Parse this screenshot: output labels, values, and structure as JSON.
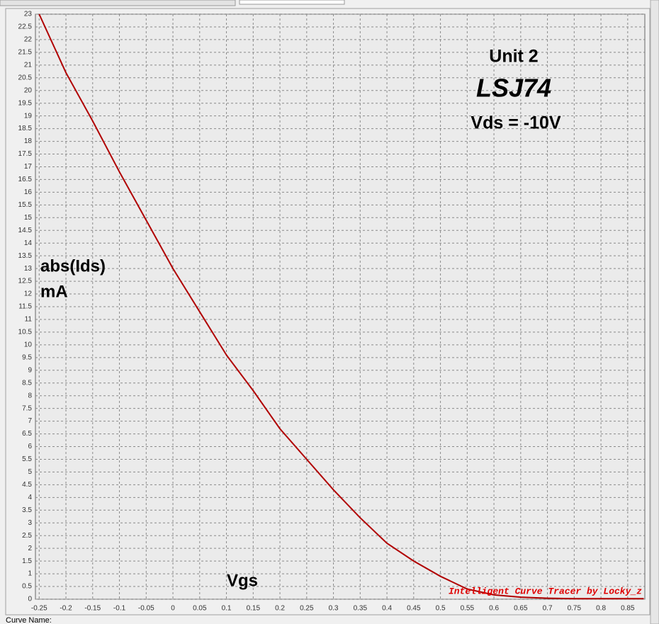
{
  "chart_data": {
    "type": "line",
    "annotations": [
      "Unit 2",
      "LSJ74",
      "Vds = -10V"
    ],
    "ylabel": [
      "abs(Ids)",
      "mA"
    ],
    "xlabel": "Vgs",
    "watermark": "Intelligent Curve Tracer by Locky_z",
    "color": "#b00000",
    "x": [
      -0.25,
      -0.2,
      -0.15,
      -0.1,
      -0.05,
      0,
      0.05,
      0.1,
      0.15,
      0.2,
      0.25,
      0.3,
      0.35,
      0.4,
      0.45,
      0.5,
      0.55,
      0.6,
      0.65,
      0.7,
      0.75,
      0.8,
      0.85,
      0.88
    ],
    "values": [
      23,
      20.7,
      18.8,
      16.8,
      14.9,
      13,
      11.3,
      9.6,
      8.2,
      6.7,
      5.5,
      4.3,
      3.2,
      2.2,
      1.5,
      0.9,
      0.4,
      0.17,
      0.08,
      0.04,
      0.02,
      0.02,
      0.02,
      0.02
    ],
    "xlim": [
      -0.257,
      0.882
    ],
    "ylim": [
      0,
      23
    ],
    "xticks": [
      -0.25,
      -0.2,
      -0.15,
      -0.1,
      -0.05,
      0,
      0.05,
      0.1,
      0.15,
      0.2,
      0.25,
      0.3,
      0.35,
      0.4,
      0.45,
      0.5,
      0.55,
      0.6,
      0.65,
      0.7,
      0.75,
      0.8,
      0.85
    ],
    "yticks": [
      0,
      0.5,
      1,
      1.5,
      2,
      2.5,
      3,
      3.5,
      4,
      4.5,
      5,
      5.5,
      6,
      6.5,
      7,
      7.5,
      8,
      8.5,
      9,
      9.5,
      10,
      10.5,
      11,
      11.5,
      12,
      12.5,
      13,
      13.5,
      14,
      14.5,
      15,
      15.5,
      16,
      16.5,
      17,
      17.5,
      18,
      18.5,
      19,
      19.5,
      20,
      20.5,
      21,
      21.5,
      22,
      22.5,
      23
    ],
    "grid": true
  },
  "status_bar": {
    "label": "Curve Name:"
  }
}
